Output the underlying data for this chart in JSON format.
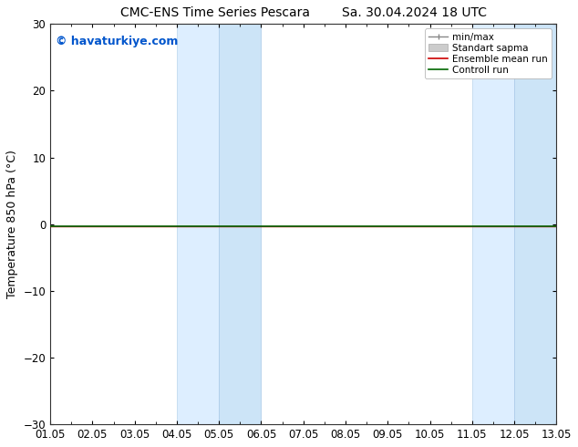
{
  "title_left": "CMC-ENS Time Series Pescara",
  "title_right": "Sa. 30.04.2024 18 UTC",
  "ylabel": "Temperature 850 hPa (°C)",
  "xlim": [
    0,
    12
  ],
  "ylim": [
    -30,
    30
  ],
  "yticks": [
    -30,
    -20,
    -10,
    0,
    10,
    20,
    30
  ],
  "xtick_labels": [
    "01.05",
    "02.05",
    "03.05",
    "04.05",
    "05.05",
    "06.05",
    "07.05",
    "08.05",
    "09.05",
    "10.05",
    "11.05",
    "12.05",
    "13.05"
  ],
  "watermark": "© havaturkiye.com",
  "watermark_color": "#0055cc",
  "shaded_regions": [
    [
      3,
      4
    ],
    [
      4,
      5
    ],
    [
      10,
      11
    ],
    [
      11,
      12
    ]
  ],
  "shaded_colors": [
    "#ddeeff",
    "#cce4f7",
    "#ddeeff",
    "#cce4f7"
  ],
  "shaded_edge_colors": [
    "#b8d4ec",
    "#a8c8e8",
    "#b8d4ec",
    "#a8c8e8"
  ],
  "control_run_y": -0.3,
  "control_run_color": "#006600",
  "ensemble_mean_color": "#cc0000",
  "minmax_color": "#888888",
  "stddev_color": "#cccccc",
  "legend_labels": [
    "min/max",
    "Standart sapma",
    "Ensemble mean run",
    "Controll run"
  ],
  "background_color": "#ffffff",
  "title_fontsize": 10,
  "tick_fontsize": 8.5,
  "ylabel_fontsize": 9,
  "watermark_fontsize": 9
}
